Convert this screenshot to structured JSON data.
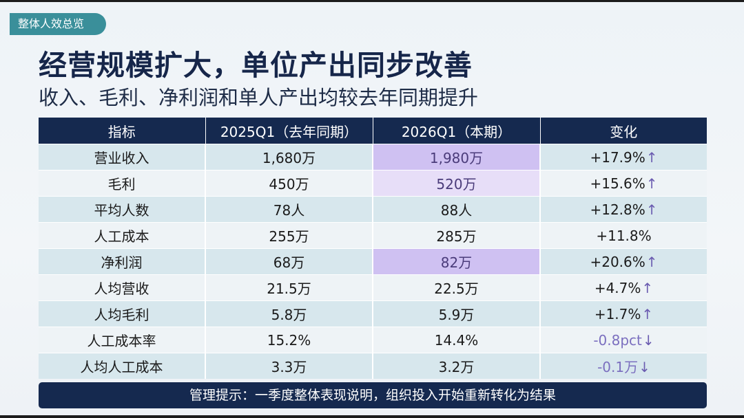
{
  "tag": "整体人效总览",
  "title": "经营规模扩大，单位产出同步改善",
  "subtitle": "收入、毛利、净利润和单人产出均较去年同期提升",
  "table": {
    "headers": [
      "指标",
      "2025Q1（去年同期）",
      "2026Q1（本期）",
      "变化"
    ],
    "rows": [
      {
        "metric": "营业收入",
        "prev": "1,680万",
        "curr": "1,980万",
        "change": "+17.9%",
        "arrow": "↑",
        "highlight": "strong",
        "negative": false
      },
      {
        "metric": "毛利",
        "prev": "450万",
        "curr": "520万",
        "change": "+15.6%",
        "arrow": "↑",
        "highlight": "soft",
        "negative": false
      },
      {
        "metric": "平均人数",
        "prev": "78人",
        "curr": "88人",
        "change": "+12.8%",
        "arrow": "↑",
        "highlight": "",
        "negative": false
      },
      {
        "metric": "人工成本",
        "prev": "255万",
        "curr": "285万",
        "change": "+11.8%",
        "arrow": "",
        "highlight": "",
        "negative": false
      },
      {
        "metric": "净利润",
        "prev": "68万",
        "curr": "82万",
        "change": "+20.6%",
        "arrow": "↑",
        "highlight": "strong",
        "negative": false
      },
      {
        "metric": "人均营收",
        "prev": "21.5万",
        "curr": "22.5万",
        "change": "+4.7%",
        "arrow": "↑",
        "highlight": "",
        "negative": false
      },
      {
        "metric": "人均毛利",
        "prev": "5.8万",
        "curr": "5.9万",
        "change": "+1.7%",
        "arrow": "↑",
        "highlight": "",
        "negative": false
      },
      {
        "metric": "人工成本率",
        "prev": "15.2%",
        "curr": "14.4%",
        "change": "-0.8pct",
        "arrow": "↓",
        "highlight": "",
        "negative": true
      },
      {
        "metric": "人均人工成本",
        "prev": "3.3万",
        "curr": "3.2万",
        "change": "-0.1万",
        "arrow": "↓",
        "highlight": "",
        "negative": true
      }
    ]
  },
  "footer": "管理提示：一季度整体表现说明，组织投入开始重新转化为结果",
  "colors": {
    "navy": "#15294f",
    "teal_tag": "#3a8f9a",
    "row_odd": "#d7e7ed",
    "row_even": "#eef3f6",
    "highlight_strong": "#cfc1f2",
    "highlight_soft": "#e7def8",
    "arrow_purple": "#6a5bb0"
  }
}
